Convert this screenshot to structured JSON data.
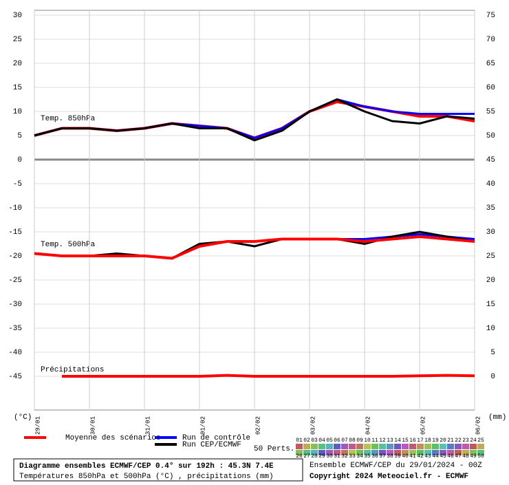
{
  "chart_data": {
    "type": "line",
    "title": "Diagramme ensembles ECMWF/CEP 0.4° sur 192h : 45.3N 7.4E",
    "subtitle": "Températures 850hPa et 500hPa (°C) , précipitations (mm)",
    "run_info": "Ensemble ECMWF/CEP du 29/01/2024 - 00Z",
    "copyright": "Copyright 2024 Meteociel.fr - ECMWF",
    "annotations": [
      "Temp. 850hPa",
      "Temp. 500hPa",
      "Précipitations"
    ],
    "y_unit": "(°C)",
    "y2_unit": "(mm)",
    "perturbations_label": "50 Perts.",
    "perturbations": [
      "01",
      "02",
      "03",
      "04",
      "05",
      "06",
      "07",
      "08",
      "09",
      "10",
      "11",
      "12",
      "13",
      "14",
      "15",
      "16",
      "17",
      "18",
      "19",
      "20",
      "21",
      "22",
      "23",
      "24",
      "25",
      "26",
      "27",
      "28",
      "29",
      "30",
      "31",
      "32",
      "33",
      "34",
      "35",
      "36",
      "37",
      "38",
      "39",
      "40",
      "41",
      "42",
      "43",
      "44",
      "45",
      "46",
      "47",
      "48",
      "49",
      "50"
    ],
    "x": [
      0,
      12,
      24,
      36,
      48,
      60,
      72,
      84,
      96,
      108,
      120,
      132,
      144,
      156,
      168,
      180,
      192
    ],
    "xlim": [
      0,
      192
    ],
    "xticks": [
      {
        "value": 0,
        "label": "29/01"
      },
      {
        "value": 24,
        "label": "30/01"
      },
      {
        "value": 48,
        "label": "31/01"
      },
      {
        "value": 72,
        "label": "01/02"
      },
      {
        "value": 96,
        "label": "02/02"
      },
      {
        "value": 120,
        "label": "03/02"
      },
      {
        "value": 144,
        "label": "04/02"
      },
      {
        "value": 168,
        "label": "05/02"
      },
      {
        "value": 192,
        "label": "06/02"
      }
    ],
    "ylim": [
      -52,
      31
    ],
    "yticks": [
      30,
      25,
      20,
      15,
      10,
      5,
      0,
      -5,
      -10,
      -15,
      -20,
      -25,
      -30,
      -35,
      -40,
      -45
    ],
    "y2lim": [
      -7,
      76
    ],
    "y2ticks": [
      75,
      70,
      65,
      60,
      55,
      50,
      45,
      40,
      35,
      30,
      25,
      20,
      15,
      10,
      5,
      0
    ],
    "grid": true,
    "series": [
      {
        "name": "Moyenne des scénarios",
        "color": "#ff0000",
        "values": [
          5,
          6.5,
          6.5,
          6,
          6.5,
          7.5,
          7,
          6.5,
          4.5,
          6.5,
          10,
          12,
          11,
          10,
          9,
          9,
          8
        ]
      },
      {
        "name": "Run de contrôle",
        "color": "#0000ff",
        "values": [
          5,
          6.5,
          6.5,
          6,
          6.5,
          7.5,
          7,
          6.5,
          4.5,
          6.5,
          10,
          12.5,
          11,
          10,
          9.5,
          9.5,
          9.5
        ]
      },
      {
        "name": "Run CEP/ECMWF",
        "color": "#000000",
        "values": [
          5,
          6.5,
          6.5,
          6,
          6.5,
          7.5,
          6.5,
          6.5,
          4,
          6,
          10,
          12.5,
          10,
          8,
          7.5,
          9,
          8.5
        ]
      },
      {
        "name": null,
        "color": "#0000ff",
        "values": [
          -19.5,
          -20,
          -20,
          -20,
          -20,
          -20.5,
          -18,
          -17,
          -17,
          -16.5,
          -16.5,
          -16.5,
          -16.5,
          -16,
          -15.5,
          -16,
          -16.5
        ]
      },
      {
        "name": null,
        "color": "#000000",
        "values": [
          -19.5,
          -20,
          -20,
          -19.5,
          -20,
          -20.5,
          -17.5,
          -17,
          -18,
          -16.5,
          -16.5,
          -16.5,
          -17.5,
          -16,
          -15,
          -16,
          -17
        ]
      },
      {
        "name": null,
        "color": "#ff0000",
        "values": [
          -19.5,
          -20,
          -20,
          -20,
          -20,
          -20.5,
          -18,
          -17,
          -17,
          -16.5,
          -16.5,
          -16.5,
          -17,
          -16.5,
          -16,
          -16.5,
          -17
        ]
      },
      {
        "name": null,
        "color": "#ff0000",
        "axis": "y2",
        "values": [
          null,
          0,
          0,
          0,
          0,
          0,
          0,
          0.2,
          0,
          0,
          0,
          0,
          0,
          0,
          0.1,
          0.2,
          0.1
        ]
      }
    ]
  }
}
